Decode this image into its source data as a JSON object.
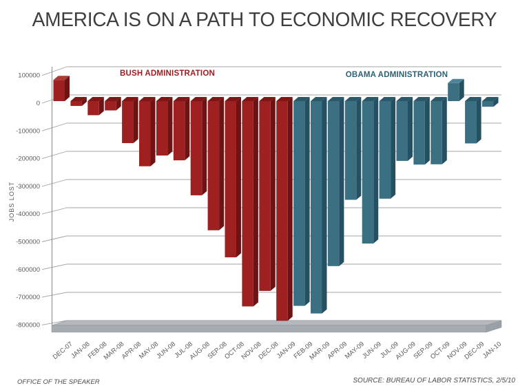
{
  "title": "AMERICA IS ON A PATH TO ECONOMIC RECOVERY",
  "annotations": {
    "bush": "BUSH ADMINISTRATION",
    "obama": "OBAMA ADMINISTRATION"
  },
  "footer": {
    "left": "OFFICE OF THE SPEAKER",
    "right": "SOURCE: BUREAU OF LABOR STATISTICS, 2/5/10"
  },
  "colors": {
    "bush_front": "#9f2021",
    "bush_side": "#6e1314",
    "bush_top": "#7c1617",
    "bush_top_positive": "#aa3a33",
    "obama_front": "#3a7082",
    "obama_side": "#255062",
    "obama_top": "#2c5868",
    "obama_top_positive": "#4d8498",
    "grid": "#a3a3a3",
    "axis_text": "#595959",
    "floor_top": "#b4b8bd",
    "floor_front": "#a6abb1",
    "floor_side": "#9aa0a7"
  },
  "chart_data": {
    "type": "bar",
    "title": "AMERICA IS ON A PATH TO ECONOMIC RECOVERY",
    "ylabel": "JOBS LOST",
    "xlabel": "",
    "ylim": [
      -800000,
      100000
    ],
    "ytick_step": 100000,
    "grid": true,
    "legend_position": "none",
    "style": "3d-column",
    "region_labels": [
      "BUSH ADMINISTRATION",
      "OBAMA ADMINISTRATION"
    ],
    "source": "SOURCE: BUREAU OF LABOR STATISTICS, 2/5/10",
    "categories": [
      "DEC-07",
      "JAN-08",
      "FEB-08",
      "MAR-08",
      "APR-08",
      "MAY-08",
      "JUN-08",
      "JUL-08",
      "AUG-08",
      "SEP-08",
      "OCT-08",
      "NOV-08",
      "DEC-08",
      "JAN-09",
      "FEB-09",
      "MAR-09",
      "APR-09",
      "MAY-09",
      "JUN-09",
      "JUL-09",
      "AUG-09",
      "SEP-09",
      "OCT-09",
      "NOV-09",
      "DEC-09",
      "JAN-10"
    ],
    "series": [
      {
        "name": "Bush Administration",
        "color": "#9f2021",
        "values": [
          75000,
          -17000,
          -50000,
          -33000,
          -149000,
          -231000,
          -193000,
          -210000,
          -334000,
          -458000,
          -554000,
          -728000,
          -673000,
          -779000,
          null,
          null,
          null,
          null,
          null,
          null,
          null,
          null,
          null,
          null,
          null,
          null
        ]
      },
      {
        "name": "Obama Administration",
        "color": "#3a7082",
        "values": [
          null,
          null,
          null,
          null,
          null,
          null,
          null,
          null,
          null,
          null,
          null,
          null,
          null,
          null,
          -726000,
          -753000,
          -585000,
          -350000,
          -505000,
          -346000,
          -212000,
          -225000,
          -224000,
          64000,
          -150000,
          -20000
        ]
      }
    ]
  }
}
